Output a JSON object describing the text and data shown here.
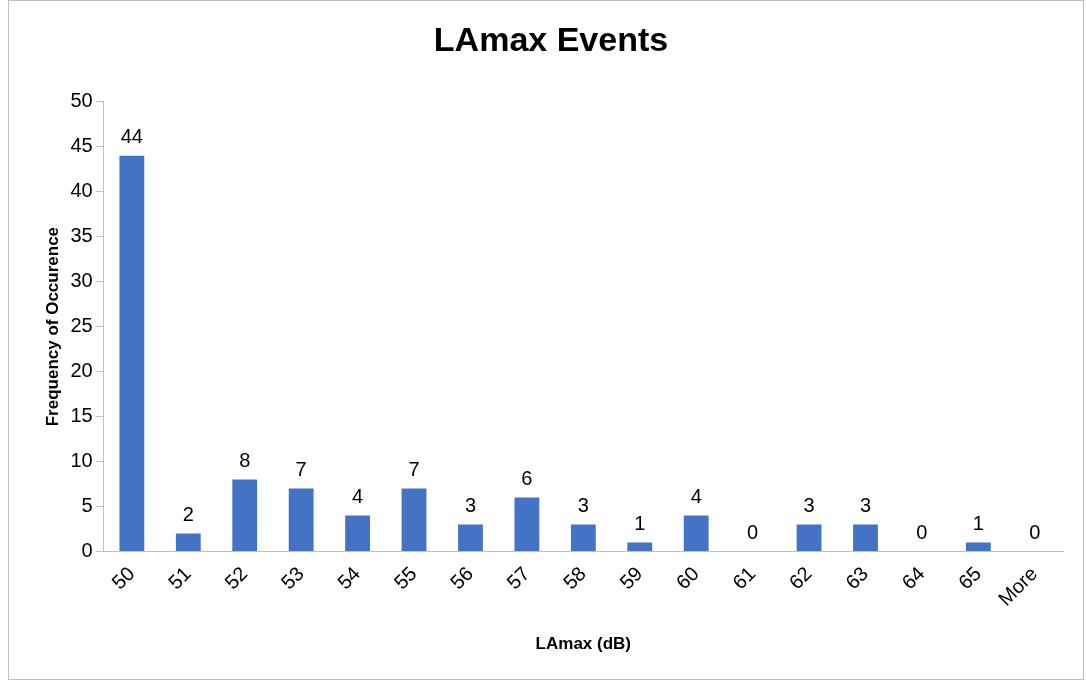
{
  "chart_data": {
    "type": "bar",
    "title": "LAmax Events",
    "xlabel": "LAmax (dB)",
    "ylabel": "Frequency of Occurence",
    "categories": [
      "50",
      "51",
      "52",
      "53",
      "54",
      "55",
      "56",
      "57",
      "58",
      "59",
      "60",
      "61",
      "62",
      "63",
      "64",
      "65",
      "More"
    ],
    "values": [
      44,
      2,
      8,
      7,
      4,
      7,
      3,
      6,
      3,
      1,
      4,
      0,
      3,
      3,
      0,
      1,
      0
    ],
    "color": "#4472c4",
    "ylim": [
      0,
      50
    ],
    "yticks": [
      0,
      5,
      10,
      15,
      20,
      25,
      30,
      35,
      40,
      45,
      50
    ],
    "grid": false,
    "legend": false,
    "data_labels": true
  }
}
